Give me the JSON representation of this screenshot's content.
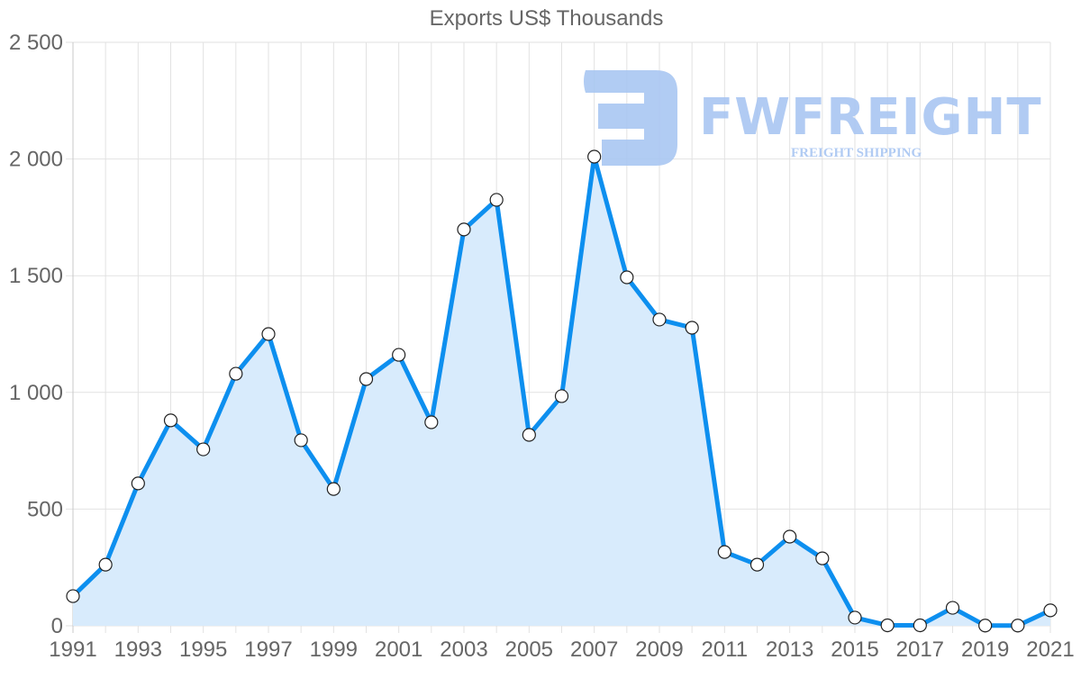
{
  "chart_data": {
    "type": "area",
    "title": "Exports US$ Thousands",
    "xlabel": "",
    "ylabel": "",
    "ylim": [
      0,
      2500
    ],
    "y_ticks": [
      0,
      500,
      1000,
      1500,
      2000,
      2500
    ],
    "y_tick_labels": [
      "0",
      "500",
      "1 000",
      "1 500",
      "2 000",
      "2 500"
    ],
    "x_tick_labels": [
      "1991",
      "1993",
      "1995",
      "1997",
      "1999",
      "2001",
      "2003",
      "2005",
      "2007",
      "2009",
      "2011",
      "2013",
      "2015",
      "2017",
      "2019",
      "2021"
    ],
    "grid": true,
    "legend": "none",
    "x": [
      1991,
      1992,
      1993,
      1994,
      1995,
      1996,
      1997,
      1998,
      1999,
      2000,
      2001,
      2002,
      2003,
      2004,
      2005,
      2006,
      2007,
      2008,
      2009,
      2010,
      2011,
      2012,
      2013,
      2014,
      2015,
      2016,
      2017,
      2018,
      2019,
      2020,
      2021
    ],
    "series": [
      {
        "name": "Exports US$ Thousands",
        "values": [
          127,
          262,
          610,
          880,
          756,
          1080,
          1250,
          795,
          586,
          1057,
          1161,
          872,
          1698,
          1825,
          818,
          984,
          2010,
          1493,
          1312,
          1277,
          316,
          262,
          382,
          289,
          35,
          2,
          2,
          77,
          1,
          1,
          66
        ]
      }
    ],
    "colors": {
      "line": "#0d8fef",
      "fill": "#d8ebfc",
      "marker_fill": "#ffffff",
      "marker_stroke": "#222222",
      "grid": "#e2e2e2",
      "axis_text": "#666666"
    }
  },
  "watermark": {
    "brand": "FWFREIGHT",
    "tagline": "FREIGHT SHIPPING",
    "color": "#a9c6f2"
  }
}
